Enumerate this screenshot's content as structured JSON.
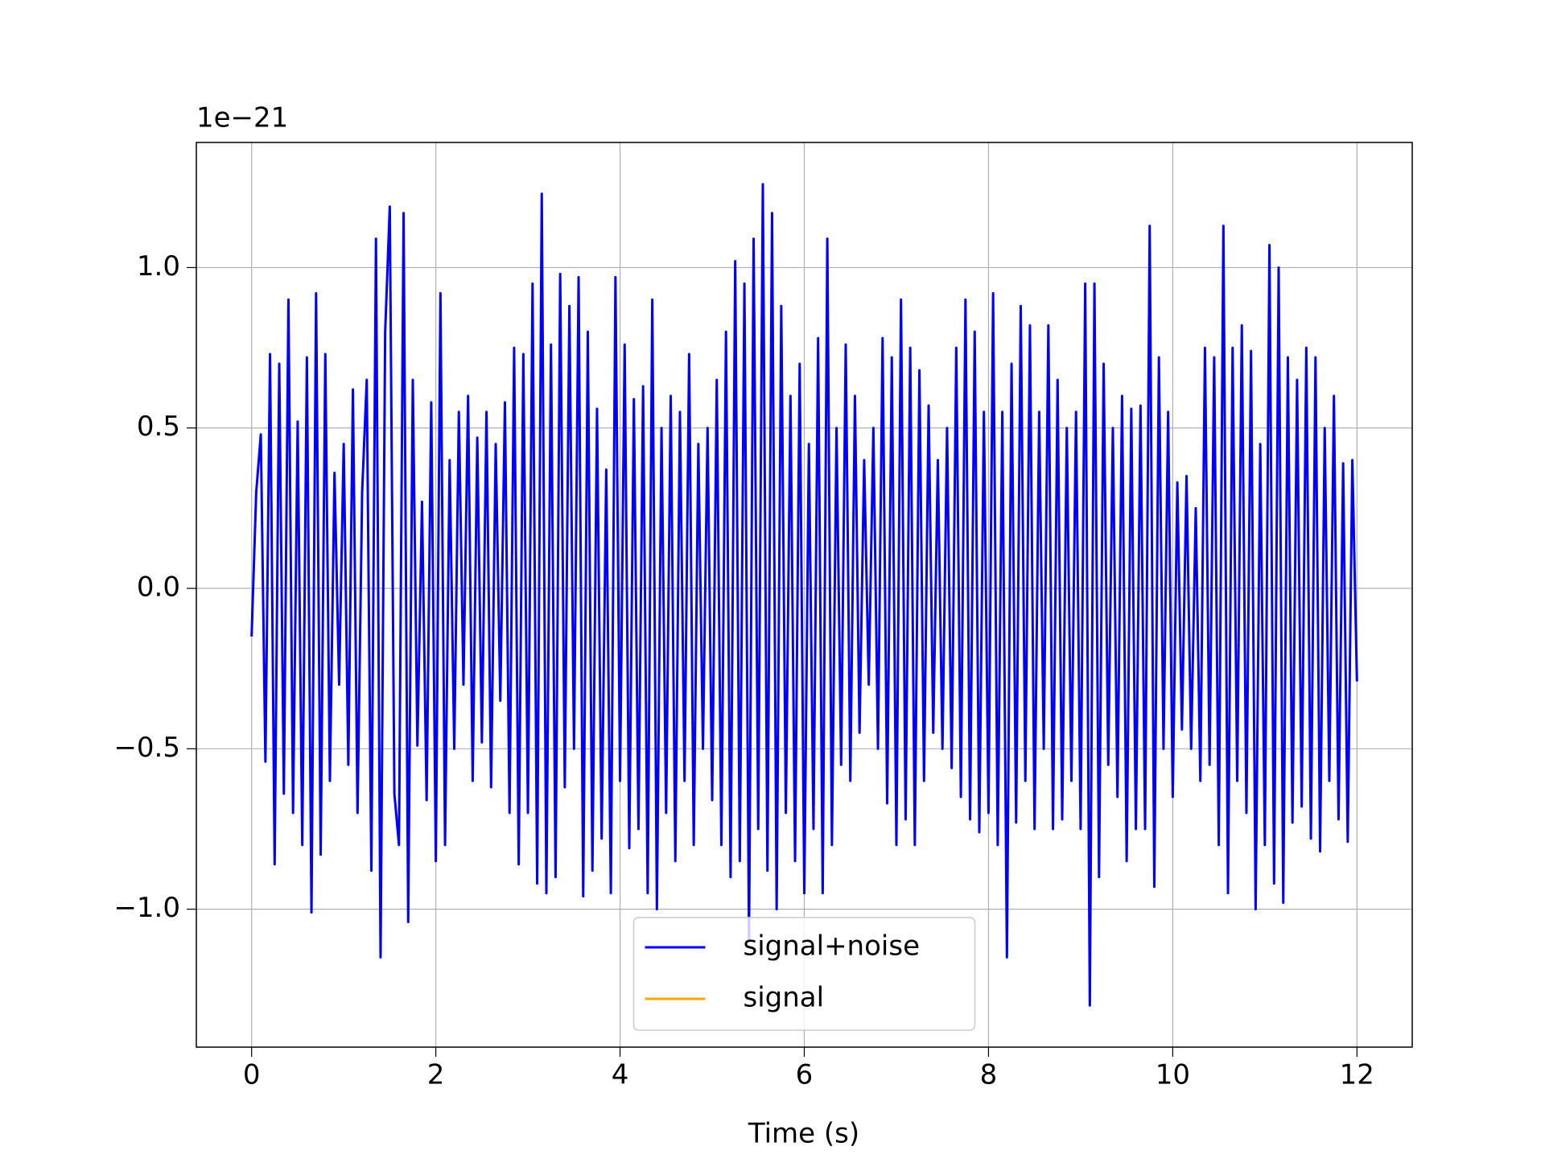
{
  "chart_data": {
    "type": "line",
    "offset_label": "1e−21",
    "xlabel": "Time (s)",
    "x": [
      0,
      0.05,
      0.1,
      0.15,
      0.2,
      0.25,
      0.3,
      0.35,
      0.4,
      0.45,
      0.5,
      0.55,
      0.6,
      0.65,
      0.7,
      0.75,
      0.8,
      0.85,
      0.9,
      0.95,
      1,
      1.05,
      1.1,
      1.15,
      1.2,
      1.25,
      1.3,
      1.35,
      1.4,
      1.45,
      1.5,
      1.55,
      1.6,
      1.65,
      1.7,
      1.75,
      1.8,
      1.85,
      1.9,
      1.95,
      2,
      2.05,
      2.1,
      2.15,
      2.2,
      2.25,
      2.3,
      2.35,
      2.4,
      2.45,
      2.5,
      2.55,
      2.6,
      2.65,
      2.7,
      2.75,
      2.8,
      2.85,
      2.9,
      2.95,
      3,
      3.05,
      3.1,
      3.15,
      3.2,
      3.25,
      3.3,
      3.35,
      3.4,
      3.45,
      3.5,
      3.55,
      3.6,
      3.65,
      3.7,
      3.75,
      3.8,
      3.85,
      3.9,
      3.95,
      4,
      4.05,
      4.1,
      4.15,
      4.2,
      4.25,
      4.3,
      4.35,
      4.4,
      4.45,
      4.5,
      4.55,
      4.6,
      4.65,
      4.7,
      4.75,
      4.8,
      4.85,
      4.9,
      4.95,
      5,
      5.05,
      5.1,
      5.15,
      5.2,
      5.25,
      5.3,
      5.35,
      5.4,
      5.45,
      5.5,
      5.55,
      5.6,
      5.65,
      5.7,
      5.75,
      5.8,
      5.85,
      5.9,
      5.95,
      6,
      6.05,
      6.1,
      6.15,
      6.2,
      6.25,
      6.3,
      6.35,
      6.4,
      6.45,
      6.5,
      6.55,
      6.6,
      6.65,
      6.7,
      6.75,
      6.8,
      6.85,
      6.9,
      6.95,
      7,
      7.05,
      7.1,
      7.15,
      7.2,
      7.25,
      7.3,
      7.35,
      7.4,
      7.45,
      7.5,
      7.55,
      7.6,
      7.65,
      7.7,
      7.75,
      7.8,
      7.85,
      7.9,
      7.95,
      8,
      8.05,
      8.1,
      8.15,
      8.2,
      8.25,
      8.3,
      8.35,
      8.4,
      8.45,
      8.5,
      8.55,
      8.6,
      8.65,
      8.7,
      8.75,
      8.8,
      8.85,
      8.9,
      8.95,
      9,
      9.05,
      9.1,
      9.15,
      9.2,
      9.25,
      9.3,
      9.35,
      9.4,
      9.45,
      9.5,
      9.55,
      9.6,
      9.65,
      9.7,
      9.75,
      9.8,
      9.85,
      9.9,
      9.95,
      10,
      10.05,
      10.1,
      10.15,
      10.2,
      10.25,
      10.3,
      10.35,
      10.4,
      10.45,
      10.5,
      10.55,
      10.6,
      10.65,
      10.7,
      10.75,
      10.8,
      10.85,
      10.9,
      10.95,
      11,
      11.05,
      11.1,
      11.15,
      11.2,
      11.25,
      11.3,
      11.35,
      11.4,
      11.45,
      11.5,
      11.55,
      11.6,
      11.65,
      11.7,
      11.75,
      11.8,
      11.85,
      11.9,
      11.95,
      12
    ],
    "series": [
      {
        "name": "signal+noise",
        "color": "#0000ff",
        "values": [
          -0.15,
          0.3,
          0.48,
          -0.54,
          0.73,
          -0.86,
          0.7,
          -0.64,
          0.9,
          -0.7,
          0.52,
          -0.8,
          0.72,
          -1.01,
          0.92,
          -0.83,
          0.73,
          -0.6,
          0.36,
          -0.3,
          0.45,
          -0.55,
          0.62,
          -0.7,
          0.3,
          0.65,
          -0.88,
          1.09,
          -1.15,
          0.8,
          1.19,
          -0.64,
          -0.8,
          1.17,
          -1.04,
          0.65,
          -0.49,
          0.27,
          -0.66,
          0.58,
          -0.85,
          0.92,
          -0.8,
          0.4,
          -0.5,
          0.55,
          -0.3,
          0.6,
          -0.6,
          0.47,
          -0.48,
          0.55,
          -0.62,
          0.45,
          -0.35,
          0.58,
          -0.7,
          0.75,
          -0.86,
          0.73,
          -0.7,
          0.95,
          -0.92,
          1.23,
          -0.95,
          0.76,
          -0.9,
          0.98,
          -0.62,
          0.88,
          -0.5,
          0.97,
          -0.96,
          0.8,
          -0.88,
          0.56,
          -0.78,
          0.37,
          -0.95,
          0.97,
          -0.6,
          0.76,
          -0.81,
          0.59,
          -0.75,
          0.63,
          -0.95,
          0.9,
          -1.0,
          0.5,
          -0.7,
          0.6,
          -0.85,
          0.55,
          -0.6,
          0.73,
          -0.8,
          0.45,
          -0.5,
          0.5,
          -0.66,
          0.65,
          -0.8,
          0.8,
          -0.9,
          1.02,
          -0.85,
          0.95,
          -1.1,
          1.09,
          -0.75,
          1.26,
          -0.88,
          1.17,
          -1.0,
          0.88,
          -0.7,
          0.6,
          -0.85,
          0.7,
          -0.95,
          0.45,
          -0.75,
          0.78,
          -0.95,
          1.09,
          -0.8,
          0.5,
          -0.55,
          0.76,
          -0.6,
          0.6,
          -0.45,
          0.4,
          -0.3,
          0.5,
          -0.5,
          0.78,
          -0.67,
          0.72,
          -0.8,
          0.9,
          -0.72,
          0.75,
          -0.8,
          0.68,
          -0.6,
          0.57,
          -0.45,
          0.4,
          -0.5,
          0.5,
          -0.56,
          0.75,
          -0.65,
          0.9,
          -0.72,
          0.8,
          -0.76,
          0.55,
          -0.7,
          0.92,
          -0.8,
          0.55,
          -1.15,
          0.7,
          -0.73,
          0.88,
          -0.6,
          0.82,
          -0.75,
          0.55,
          -0.5,
          0.82,
          -0.75,
          0.65,
          -0.72,
          0.5,
          -0.6,
          0.55,
          -0.75,
          0.95,
          -1.3,
          0.95,
          -0.9,
          0.7,
          -0.55,
          0.5,
          -0.65,
          0.6,
          -0.85,
          0.56,
          -0.75,
          0.57,
          -0.75,
          1.13,
          -0.93,
          0.72,
          -0.5,
          0.55,
          -0.65,
          0.33,
          -0.44,
          0.35,
          -0.5,
          0.25,
          -0.6,
          0.75,
          -0.55,
          0.72,
          -0.8,
          1.13,
          -0.95,
          0.75,
          -0.6,
          0.82,
          -0.7,
          0.74,
          -1.0,
          0.45,
          -0.8,
          1.07,
          -0.92,
          1.0,
          -0.98,
          0.72,
          -0.73,
          0.65,
          -0.68,
          0.75,
          -0.78,
          0.72,
          -0.82,
          0.5,
          -0.6,
          0.6,
          -0.72,
          0.39,
          -0.79,
          0.4,
          -0.29
        ]
      },
      {
        "name": "signal",
        "color": "#ffa500",
        "x": [
          0,
          12
        ],
        "values": [
          null,
          null
        ]
      }
    ],
    "xlim": [
      -0.6,
      12.6
    ],
    "xticks": [
      0,
      2,
      4,
      6,
      8,
      10,
      12
    ],
    "ylim": [
      -1.43,
      1.39
    ],
    "yticks": [
      {
        "value": -1,
        "label": "−1.0"
      },
      {
        "value": -0.5,
        "label": "−0.5"
      },
      {
        "value": 0,
        "label": "0.0"
      },
      0.5,
      {
        "value": 1,
        "label": "1.0"
      }
    ],
    "grid": true,
    "legend": "lower center"
  }
}
